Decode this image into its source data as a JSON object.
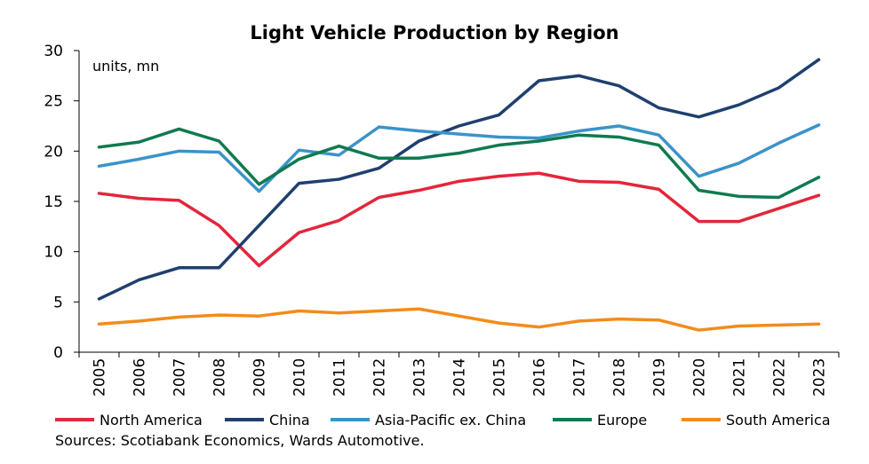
{
  "chart_data": {
    "type": "line",
    "title": "Light Vehicle Production by Region",
    "unit_label": "units, mn",
    "x": [
      "2005",
      "2006",
      "2007",
      "2008",
      "2009",
      "2010",
      "2011",
      "2012",
      "2013",
      "2014",
      "2015",
      "2016",
      "2017",
      "2018",
      "2019",
      "2020",
      "2021",
      "2022",
      "2023"
    ],
    "ylim": [
      0,
      30
    ],
    "yticks": [
      0,
      5,
      10,
      15,
      20,
      25,
      30
    ],
    "grid": false,
    "legend_position": "bottom",
    "series": [
      {
        "name": "North America",
        "color": "#e3263b",
        "values": [
          15.8,
          15.3,
          15.1,
          12.6,
          8.6,
          11.9,
          13.1,
          15.4,
          16.1,
          17.0,
          17.5,
          17.8,
          17.0,
          16.9,
          16.2,
          13.0,
          13.0,
          14.3,
          15.6
        ]
      },
      {
        "name": "China",
        "color": "#1f3f6e",
        "values": [
          5.3,
          7.2,
          8.4,
          8.4,
          12.6,
          16.8,
          17.2,
          18.3,
          21.0,
          22.5,
          23.6,
          27.0,
          27.5,
          26.5,
          24.3,
          23.4,
          24.6,
          26.3,
          29.1
        ]
      },
      {
        "name": "Asia-Pacific ex. China",
        "color": "#3b93c9",
        "values": [
          18.5,
          19.2,
          20.0,
          19.9,
          16.0,
          20.1,
          19.6,
          22.4,
          22.0,
          21.7,
          21.4,
          21.3,
          22.0,
          22.5,
          21.6,
          17.5,
          18.8,
          20.8,
          22.6
        ]
      },
      {
        "name": "Europe",
        "color": "#0f7a4f",
        "values": [
          20.4,
          20.9,
          22.2,
          21.0,
          16.7,
          19.2,
          20.5,
          19.3,
          19.3,
          19.8,
          20.6,
          21.0,
          21.6,
          21.4,
          20.6,
          16.1,
          15.5,
          15.4,
          17.4
        ]
      },
      {
        "name": "South America",
        "color": "#f28c1a",
        "values": [
          2.8,
          3.1,
          3.5,
          3.7,
          3.6,
          4.1,
          3.9,
          4.1,
          4.3,
          3.6,
          2.9,
          2.5,
          3.1,
          3.3,
          3.2,
          2.2,
          2.6,
          2.7,
          2.8
        ]
      }
    ]
  },
  "footer": {
    "source": "Sources: Scotiabank Economics, Wards Automotive."
  }
}
